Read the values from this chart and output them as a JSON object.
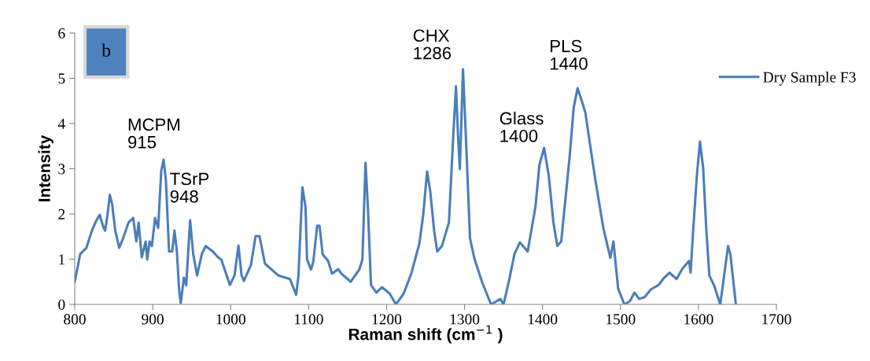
{
  "chart_data": {
    "type": "line",
    "xlabel": "Raman shift (cm$^{−1}$ )",
    "ylabel": "Intensity",
    "legend": "top right",
    "grid": false,
    "marker": "none",
    "line_style": "solid",
    "xlim": [
      800,
      1700
    ],
    "xticks": [
      800,
      900,
      1000,
      1100,
      1200,
      1300,
      1400,
      1500,
      1600,
      1700
    ],
    "ylim": [
      0,
      6
    ],
    "yticks": [
      0,
      1,
      2,
      3,
      4,
      5,
      6
    ],
    "annotations": [
      "b",
      {
        "text": "MCPM\n915",
        "x": 914,
        "y": 3.2
      },
      {
        "text": "TSrP\n948",
        "x": 948,
        "y": 1.86
      },
      {
        "text": "CHX\n1286",
        "x": 1289,
        "y": 4.82
      },
      {
        "text": "Glass\n1400",
        "x": 1402,
        "y": 3.46
      },
      {
        "text": "PLS\n1440",
        "x": 1445,
        "y": 4.78
      }
    ],
    "series": [
      {
        "name": "Dry Sample F3",
        "color": "#4a7ebb",
        "x": [
          800,
          807,
          815,
          822,
          827,
          832,
          837,
          839,
          842,
          845,
          848,
          852,
          857,
          862,
          869,
          875,
          879,
          882,
          886,
          891,
          893,
          896,
          899,
          903,
          907,
          911,
          914,
          917,
          921,
          925,
          928,
          931,
          934,
          936,
          940,
          943,
          948,
          952,
          957,
          963,
          968,
          977,
          984,
          988,
          999,
          1005,
          1010,
          1014,
          1017,
          1026,
          1032,
          1037,
          1044,
          1061,
          1076,
          1084,
          1087,
          1092,
          1096,
          1098,
          1103,
          1106,
          1111,
          1114,
          1118,
          1125,
          1130,
          1138,
          1142,
          1154,
          1165,
          1169,
          1173,
          1176,
          1180,
          1187,
          1194,
          1204,
          1212,
          1222,
          1232,
          1242,
          1247,
          1252,
          1256,
          1261,
          1265,
          1271,
          1280,
          1285,
          1289,
          1292,
          1294,
          1298,
          1302,
          1307,
          1313,
          1323,
          1334,
          1346,
          1350,
          1357,
          1364,
          1371,
          1381,
          1391,
          1396,
          1402,
          1408,
          1414,
          1419,
          1424,
          1435,
          1440,
          1445,
          1450,
          1455,
          1460,
          1468,
          1478,
          1487,
          1491,
          1497,
          1505,
          1512,
          1518,
          1524,
          1531,
          1539,
          1549,
          1556,
          1563,
          1572,
          1579,
          1588,
          1590,
          1593,
          1598,
          1602,
          1606,
          1610,
          1614,
          1620,
          1628,
          1633,
          1638,
          1641,
          1648
        ],
        "values": [
          0.5,
          1.11,
          1.25,
          1.63,
          1.83,
          1.98,
          1.69,
          1.63,
          1.98,
          2.42,
          2.21,
          1.63,
          1.25,
          1.46,
          1.81,
          1.91,
          1.39,
          1.81,
          1.04,
          1.39,
          0.99,
          1.39,
          1.29,
          1.91,
          1.69,
          2.96,
          3.2,
          2.73,
          1.17,
          1.17,
          1.63,
          1.17,
          0.3,
          0.03,
          0.59,
          0.42,
          1.86,
          1.11,
          0.64,
          1.11,
          1.29,
          1.17,
          1.04,
          0.99,
          0.43,
          0.64,
          1.3,
          0.64,
          0.52,
          0.87,
          1.51,
          1.51,
          0.9,
          0.64,
          0.56,
          0.21,
          0.64,
          2.59,
          2.16,
          0.99,
          0.77,
          0.94,
          1.74,
          1.74,
          1.11,
          0.96,
          0.68,
          0.78,
          0.68,
          0.5,
          0.77,
          0.99,
          3.13,
          2.16,
          0.43,
          0.26,
          0.38,
          0.24,
          0.0,
          0.24,
          0.7,
          1.34,
          1.98,
          2.94,
          2.5,
          1.63,
          1.17,
          1.29,
          1.81,
          3.55,
          4.82,
          3.6,
          2.99,
          5.2,
          3.6,
          1.46,
          0.99,
          0.47,
          0.0,
          0.12,
          0.0,
          0.52,
          1.11,
          1.37,
          1.17,
          2.16,
          3.08,
          3.46,
          2.85,
          1.81,
          1.29,
          1.39,
          3.3,
          4.35,
          4.78,
          4.52,
          4.24,
          3.65,
          2.73,
          1.69,
          1.03,
          1.39,
          0.35,
          0.0,
          0.07,
          0.26,
          0.12,
          0.16,
          0.33,
          0.43,
          0.59,
          0.7,
          0.56,
          0.78,
          0.96,
          0.7,
          1.57,
          2.85,
          3.6,
          3.03,
          1.69,
          0.64,
          0.42,
          0.0,
          0.64,
          1.29,
          1.11,
          0.0
        ]
      }
    ]
  }
}
